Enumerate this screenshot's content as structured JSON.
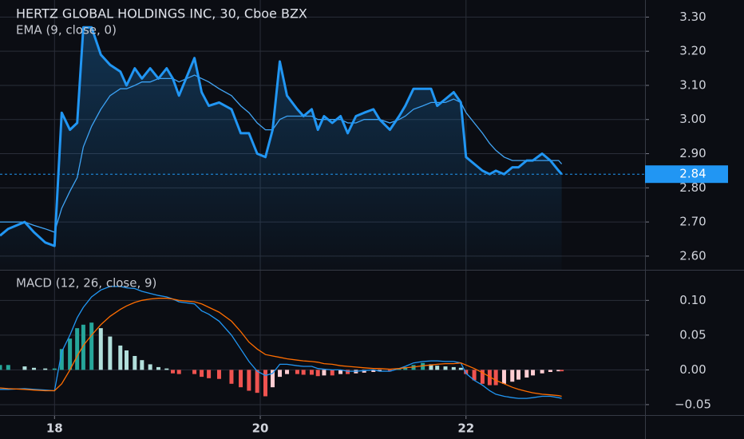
{
  "chart_data": [
    {
      "type": "line",
      "title": "HERTZ GLOBAL HOLDINGS INC, 30, Cboe BZX",
      "x": [
        17.47,
        17.55,
        17.71,
        17.8,
        17.91,
        18.0,
        18.07,
        18.15,
        18.22,
        18.28,
        18.36,
        18.45,
        18.54,
        18.64,
        18.7,
        18.78,
        18.85,
        18.93,
        19.01,
        19.09,
        19.15,
        19.21,
        19.36,
        19.43,
        19.5,
        19.6,
        19.72,
        19.81,
        19.89,
        19.97,
        20.05,
        20.12,
        20.19,
        20.26,
        20.36,
        20.42,
        20.5,
        20.56,
        20.62,
        20.7,
        20.78,
        20.85,
        20.93,
        21.01,
        21.1,
        21.16,
        21.26,
        21.35,
        21.41,
        21.49,
        21.58,
        21.66,
        21.72,
        21.8,
        21.88,
        21.95,
        22.0,
        22.08,
        22.16,
        22.23,
        22.29,
        22.37,
        22.45,
        22.51,
        22.59,
        22.65,
        22.74,
        22.82,
        22.9,
        22.93
      ],
      "series": [
        {
          "color": "#2196f3",
          "values": [
            2.66,
            2.68,
            2.7,
            2.67,
            2.64,
            2.63,
            3.02,
            2.97,
            2.99,
            3.27,
            3.27,
            3.19,
            3.16,
            3.14,
            3.1,
            3.15,
            3.12,
            3.15,
            3.12,
            3.15,
            3.12,
            3.07,
            3.18,
            3.08,
            3.04,
            3.05,
            3.03,
            2.96,
            2.96,
            2.9,
            2.89,
            2.97,
            3.17,
            3.07,
            3.03,
            3.01,
            3.03,
            2.97,
            3.01,
            2.99,
            3.01,
            2.96,
            3.01,
            3.02,
            3.03,
            3.0,
            2.97,
            3.01,
            3.04,
            3.09,
            3.09,
            3.09,
            3.04,
            3.06,
            3.08,
            3.05,
            2.89,
            2.87,
            2.85,
            2.84,
            2.85,
            2.84,
            2.86,
            2.86,
            2.88,
            2.88,
            2.9,
            2.88,
            2.85,
            2.84
          ]
        },
        {
          "name": "EMA (9, close, 0)",
          "color": "#42a5f5",
          "values": [
            2.7,
            2.7,
            2.7,
            2.69,
            2.68,
            2.67,
            2.74,
            2.79,
            2.83,
            2.92,
            2.98,
            3.03,
            3.07,
            3.09,
            3.09,
            3.1,
            3.11,
            3.11,
            3.12,
            3.12,
            3.12,
            3.11,
            3.13,
            3.12,
            3.11,
            3.09,
            3.07,
            3.04,
            3.02,
            2.99,
            2.97,
            2.97,
            3.0,
            3.01,
            3.01,
            3.01,
            3.01,
            3.0,
            3.0,
            3.0,
            3.0,
            2.99,
            2.99,
            3.0,
            3.0,
            3.0,
            2.99,
            3.0,
            3.01,
            3.03,
            3.04,
            3.05,
            3.05,
            3.05,
            3.06,
            3.05,
            3.02,
            2.99,
            2.96,
            2.93,
            2.91,
            2.89,
            2.88,
            2.88,
            2.88,
            2.88,
            2.88,
            2.88,
            2.88,
            2.87
          ]
        }
      ],
      "xlim": [
        17.47,
        23.74
      ],
      "ylim": [
        2.56,
        3.35
      ],
      "yticks": [
        {
          "value": 2.6,
          "label": "2.60"
        },
        {
          "value": 2.7,
          "label": "2.70"
        },
        {
          "value": 2.8,
          "label": "2.80"
        },
        {
          "value": 2.9,
          "label": "2.90"
        },
        {
          "value": 3.0,
          "label": "3.00"
        },
        {
          "value": 3.1,
          "label": "3.10"
        },
        {
          "value": 3.2,
          "label": "3.20"
        },
        {
          "value": 3.3,
          "label": "3.30"
        }
      ],
      "grid": true
    },
    {
      "type": "macd",
      "title": "MACD (12, 26, close, 9)",
      "x": [
        17.47,
        17.55,
        17.71,
        17.8,
        17.91,
        18.0,
        18.07,
        18.15,
        18.22,
        18.28,
        18.36,
        18.45,
        18.54,
        18.64,
        18.7,
        18.78,
        18.85,
        18.93,
        19.01,
        19.09,
        19.15,
        19.21,
        19.36,
        19.43,
        19.5,
        19.6,
        19.72,
        19.81,
        19.89,
        19.97,
        20.05,
        20.12,
        20.19,
        20.26,
        20.36,
        20.42,
        20.5,
        20.56,
        20.62,
        20.7,
        20.78,
        20.85,
        20.93,
        21.01,
        21.1,
        21.16,
        21.26,
        21.35,
        21.41,
        21.49,
        21.58,
        21.66,
        21.72,
        21.8,
        21.88,
        21.95,
        22.0,
        22.08,
        22.16,
        22.23,
        22.29,
        22.37,
        22.45,
        22.51,
        22.59,
        22.65,
        22.74,
        22.82,
        22.9,
        22.93
      ],
      "series": [
        {
          "type": "bar",
          "colors": [
            "#26a69a",
            "#b2dfdb",
            "#ef5350",
            "#ffcdd2"
          ],
          "values": [
            0.007,
            0.007,
            0.005,
            0.003,
            0.002,
            0.002,
            0.03,
            0.045,
            0.06,
            0.065,
            0.068,
            0.06,
            0.048,
            0.035,
            0.028,
            0.02,
            0.014,
            0.008,
            0.004,
            0.002,
            -0.005,
            -0.006,
            -0.006,
            -0.01,
            -0.012,
            -0.013,
            -0.02,
            -0.025,
            -0.03,
            -0.033,
            -0.038,
            -0.025,
            -0.01,
            -0.006,
            -0.006,
            -0.007,
            -0.007,
            -0.009,
            -0.008,
            -0.008,
            -0.006,
            -0.006,
            -0.005,
            -0.004,
            -0.003,
            -0.002,
            -0.002,
            0.002,
            0.004,
            0.007,
            0.01,
            0.008,
            0.006,
            0.005,
            0.004,
            0.003,
            -0.006,
            -0.015,
            -0.02,
            -0.022,
            -0.022,
            -0.02,
            -0.017,
            -0.014,
            -0.011,
            -0.008,
            -0.005,
            -0.003,
            -0.002,
            -0.002
          ]
        },
        {
          "type": "line",
          "color": "#2196f3",
          "values": [
            -0.028,
            -0.028,
            -0.027,
            -0.028,
            -0.029,
            -0.03,
            0.026,
            0.05,
            0.075,
            0.09,
            0.105,
            0.115,
            0.12,
            0.12,
            0.118,
            0.117,
            0.113,
            0.11,
            0.107,
            0.105,
            0.102,
            0.098,
            0.095,
            0.085,
            0.08,
            0.07,
            0.05,
            0.03,
            0.012,
            -0.002,
            -0.008,
            -0.005,
            0.008,
            0.008,
            0.006,
            0.005,
            0.005,
            0.002,
            0.001,
            0.0,
            0.0,
            -0.002,
            -0.002,
            -0.001,
            0.0,
            -0.002,
            -0.002,
            0.002,
            0.005,
            0.01,
            0.012,
            0.013,
            0.013,
            0.012,
            0.012,
            0.01,
            -0.005,
            -0.015,
            -0.022,
            -0.03,
            -0.035,
            -0.038,
            -0.04,
            -0.041,
            -0.041,
            -0.04,
            -0.038,
            -0.038,
            -0.04,
            -0.041
          ]
        },
        {
          "type": "line",
          "color": "#ff6d00",
          "values": [
            -0.026,
            -0.027,
            -0.028,
            -0.029,
            -0.03,
            -0.03,
            -0.02,
            0.0,
            0.02,
            0.035,
            0.05,
            0.065,
            0.077,
            0.087,
            0.092,
            0.097,
            0.1,
            0.102,
            0.103,
            0.103,
            0.102,
            0.1,
            0.098,
            0.095,
            0.09,
            0.083,
            0.07,
            0.055,
            0.04,
            0.03,
            0.022,
            0.02,
            0.018,
            0.016,
            0.014,
            0.013,
            0.012,
            0.011,
            0.009,
            0.008,
            0.006,
            0.005,
            0.004,
            0.003,
            0.002,
            0.002,
            0.001,
            0.002,
            0.003,
            0.004,
            0.006,
            0.007,
            0.008,
            0.009,
            0.009,
            0.01,
            0.007,
            0.002,
            -0.004,
            -0.01,
            -0.015,
            -0.02,
            -0.025,
            -0.028,
            -0.031,
            -0.033,
            -0.035,
            -0.036,
            -0.037,
            -0.038
          ]
        }
      ],
      "xlim": [
        17.47,
        23.74
      ],
      "xticks": [
        18,
        20,
        22
      ],
      "ylim": [
        -0.065,
        0.144
      ],
      "yticks": [
        {
          "value": -0.05,
          "label": "−0.05"
        },
        {
          "value": 0.0,
          "label": "0.00"
        },
        {
          "value": 0.05,
          "label": "0.05"
        },
        {
          "value": 0.1,
          "label": "0.10"
        }
      ],
      "grid": true
    }
  ]
}
